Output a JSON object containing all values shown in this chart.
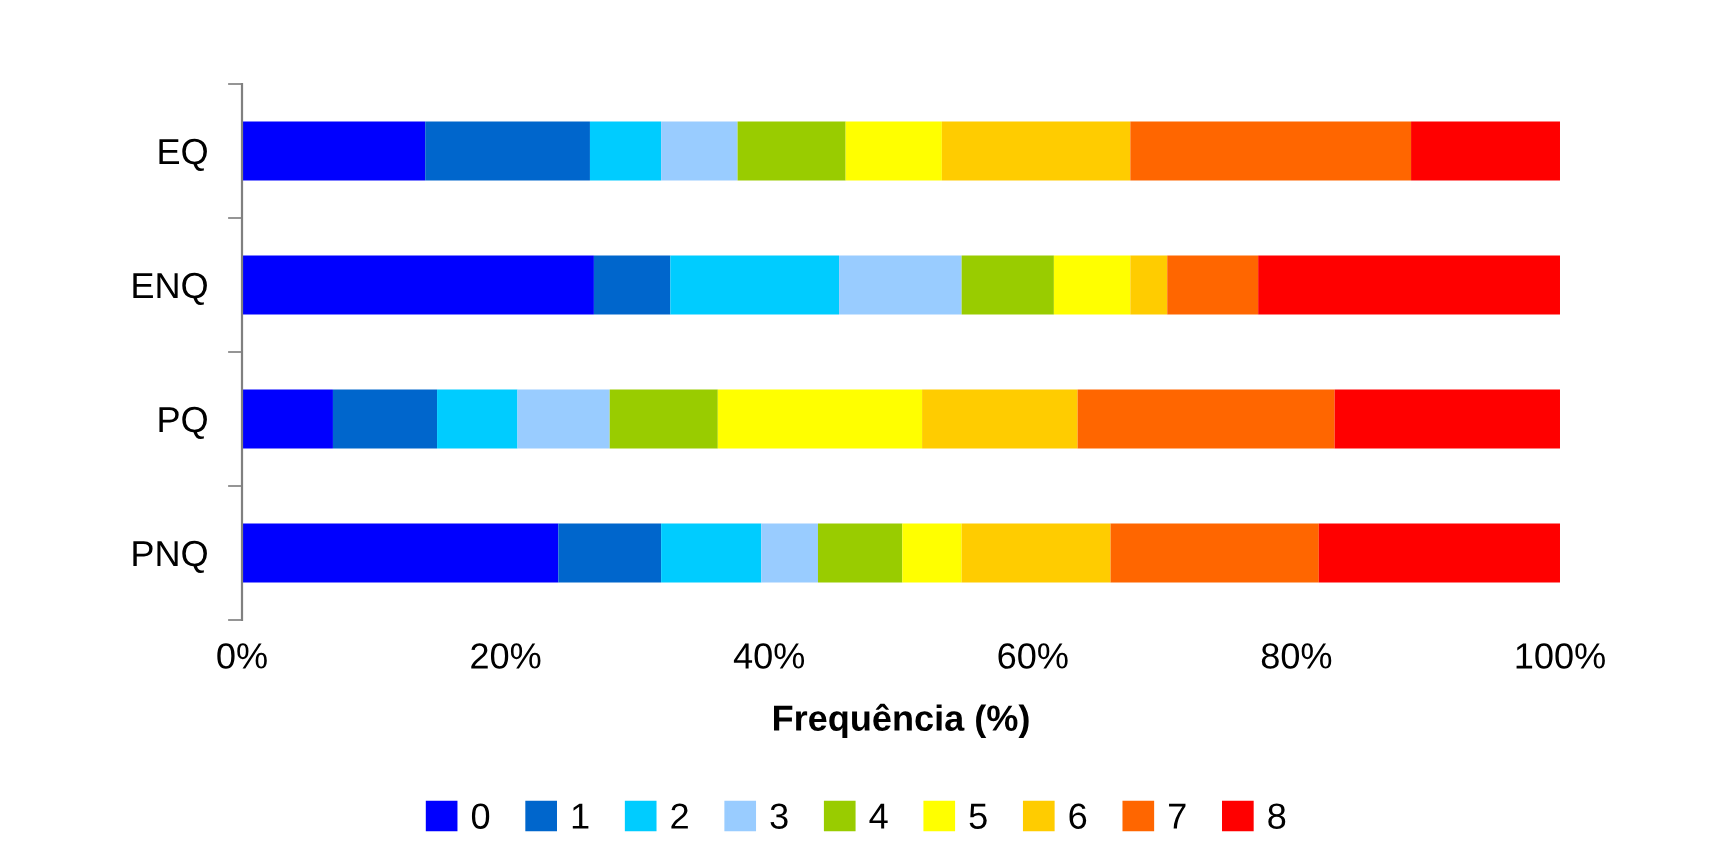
{
  "chart_data": {
    "type": "bar",
    "orientation": "horizontal",
    "stacked": true,
    "xlabel": "Frequência (%)",
    "categories": [
      "EQ",
      "ENQ",
      "PQ",
      "PNQ"
    ],
    "xlim": [
      0,
      100
    ],
    "xticks": [
      {
        "value": 0,
        "label": "0%"
      },
      {
        "value": 20,
        "label": "20%"
      },
      {
        "value": 40,
        "label": "40%"
      },
      {
        "value": 60,
        "label": "60%"
      },
      {
        "value": 80,
        "label": "80%"
      },
      {
        "value": 100,
        "label": "100%"
      }
    ],
    "grid": false,
    "legend": "bottom",
    "series": [
      {
        "name": "0",
        "color": "#0000ff",
        "values": [
          13.9,
          26.7,
          6.9,
          24.0
        ]
      },
      {
        "name": "1",
        "color": "#0066cc",
        "values": [
          12.5,
          5.8,
          7.9,
          7.8
        ]
      },
      {
        "name": "2",
        "color": "#00ccff",
        "values": [
          5.4,
          12.8,
          6.1,
          7.6
        ]
      },
      {
        "name": "3",
        "color": "#99ccff",
        "values": [
          5.8,
          9.3,
          7.0,
          4.3
        ]
      },
      {
        "name": "4",
        "color": "#99cc00",
        "values": [
          8.2,
          7.0,
          8.2,
          6.4
        ]
      },
      {
        "name": "5",
        "color": "#ffff00",
        "values": [
          7.3,
          5.8,
          15.5,
          4.5
        ]
      },
      {
        "name": "6",
        "color": "#ffcc00",
        "values": [
          14.3,
          2.8,
          11.8,
          11.3
        ]
      },
      {
        "name": "7",
        "color": "#ff6600",
        "values": [
          21.3,
          6.9,
          19.5,
          15.8
        ]
      },
      {
        "name": "8",
        "color": "#ff0000",
        "values": [
          11.3,
          22.9,
          17.1,
          18.3
        ]
      }
    ]
  }
}
